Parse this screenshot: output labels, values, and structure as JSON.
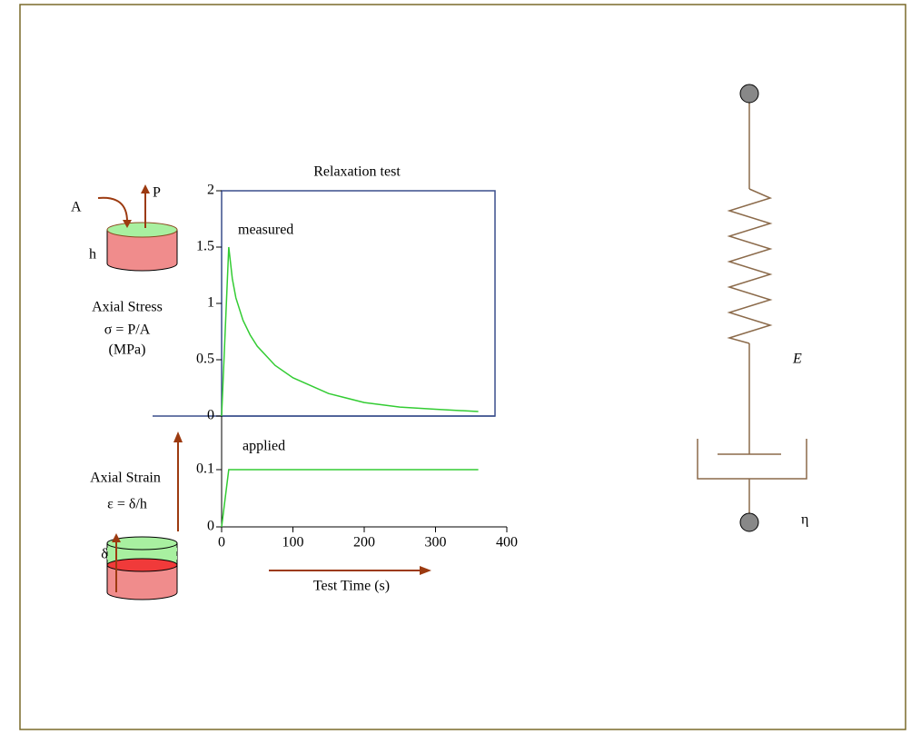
{
  "chart_data": [
    {
      "type": "line",
      "title": "Relaxation test",
      "ylabel": [
        "Axial Stress",
        "σ = P/A",
        "(MPa)"
      ],
      "x": [
        0,
        10,
        15,
        20,
        30,
        40,
        50,
        75,
        100,
        150,
        200,
        250,
        300,
        360
      ],
      "series": [
        {
          "name": "measured",
          "color": "#33cc33",
          "values": [
            0,
            1.5,
            1.22,
            1.05,
            0.85,
            0.72,
            0.62,
            0.45,
            0.34,
            0.2,
            0.12,
            0.08,
            0.06,
            0.04
          ]
        }
      ],
      "xlim": [
        0,
        400
      ],
      "ylim": [
        0,
        2
      ],
      "yticks": [
        0,
        0.5,
        1,
        1.5,
        2
      ]
    },
    {
      "type": "line",
      "ylabel": [
        "Axial Strain",
        "ε = δ/h"
      ],
      "xlabel": "Test Time (s)",
      "x": [
        0,
        10,
        360
      ],
      "series": [
        {
          "name": "applied",
          "color": "#33cc33",
          "values": [
            0,
            0.1,
            0.1
          ]
        }
      ],
      "xlim": [
        0,
        400
      ],
      "xticks": [
        0,
        100,
        200,
        300,
        400
      ],
      "ylim": [
        0,
        0.2
      ],
      "yticks": [
        0,
        0.1
      ]
    }
  ],
  "diagram": {
    "area_label": "A",
    "force_label": "P",
    "height_label": "h",
    "displacement_label": "δ",
    "spring_label": "E",
    "dashpot_label": "η"
  }
}
